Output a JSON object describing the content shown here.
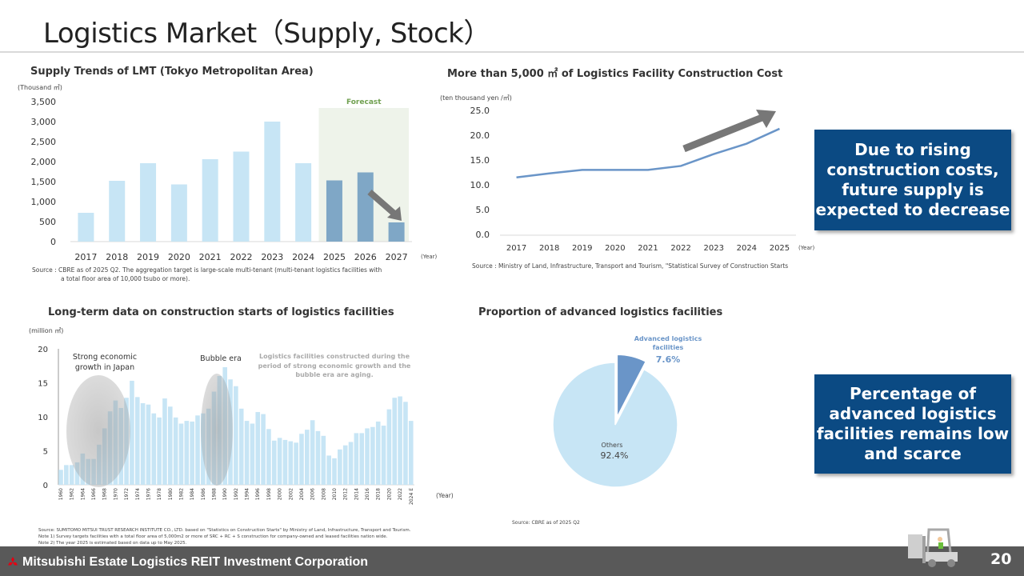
{
  "page": {
    "title": "Logistics Market（Supply, Stock）",
    "footer_company": "Mitsubishi Estate Logistics REIT Investment Corporation",
    "page_number": "20",
    "callout_top": "Due to rising construction costs, future supply is expected to decrease",
    "callout_bottom": "Percentage of advanced logistics facilities remains low and scarce"
  },
  "colors": {
    "bar_light": "#c7e5f5",
    "bar_dark": "#7fa7c6",
    "line": "#6a95c8",
    "callout": "#0b4a83",
    "forecast_bg": "#eef3ea",
    "forecast_text": "#70a050",
    "arrow": "#777777"
  },
  "chart_data": [
    {
      "type": "bar",
      "title": "Supply Trends of LMT (Tokyo Metropolitan Area)",
      "ylabel": "(Thousand ㎡)",
      "xlabel": "(Year)",
      "ylim": [
        0,
        3500
      ],
      "yticks": [
        "0",
        "500",
        "1,000",
        "1,500",
        "2,000",
        "2,500",
        "3,000",
        "3,500"
      ],
      "categories": [
        "2017",
        "2018",
        "2019",
        "2020",
        "2021",
        "2022",
        "2023",
        "2024",
        "2025",
        "2026",
        "2027"
      ],
      "values": [
        720,
        1520,
        1960,
        1430,
        2060,
        2250,
        3000,
        1960,
        1530,
        1730,
        480
      ],
      "forecast_from": "2025",
      "forecast_label": "Forecast",
      "source": "Source : CBRE  as of 2025 Q2. The aggregation target is large-scale multi-tenant (multi-tenant logistics facilities with",
      "source2": "a total floor area of 10,000 tsubo or more)."
    },
    {
      "type": "line",
      "title": "More than 5,000 ㎡ of Logistics Facility Construction Cost",
      "ylabel": "(ten thousand yen /㎡)",
      "xlabel": "(Year)",
      "ylim": [
        0,
        25
      ],
      "yticks": [
        "0.0",
        "5.0",
        "10.0",
        "15.0",
        "20.0",
        "25.0"
      ],
      "categories": [
        "2017",
        "2018",
        "2019",
        "2020",
        "2021",
        "2022",
        "2023",
        "2024",
        "2025"
      ],
      "values": [
        11.5,
        12.3,
        13.0,
        13.0,
        13.0,
        13.8,
        16.2,
        18.3,
        21.3
      ],
      "source": "Source :  Ministry of Land, Infrastructure, Transport and Tourism, \"Statistical Survey of Construction Starts"
    },
    {
      "type": "bar",
      "title": "Long-term data on construction starts of logistics facilities",
      "ylabel": "(million ㎡)",
      "xlabel": "(Year)",
      "ylim": [
        0,
        20
      ],
      "yticks": [
        "0",
        "5",
        "10",
        "15",
        "20"
      ],
      "start_year": 1960,
      "tick_labels": [
        "1960",
        "1962",
        "1964",
        "1966",
        "1968",
        "1970",
        "1972",
        "1974",
        "1976",
        "1978",
        "1980",
        "1982",
        "1984",
        "1986",
        "1988",
        "1990",
        "1992",
        "1994",
        "1996",
        "1998",
        "2000",
        "2002",
        "2004",
        "2006",
        "2008",
        "2010",
        "2012",
        "2014",
        "2016",
        "2018",
        "2020",
        "2022",
        "2024 E"
      ],
      "values": [
        2.2,
        2.9,
        2.9,
        3.3,
        4.6,
        3.8,
        3.8,
        5.9,
        8.3,
        10.8,
        12.4,
        11.3,
        12.8,
        15.3,
        12.9,
        12.0,
        11.8,
        10.5,
        9.9,
        12.7,
        11.5,
        9.9,
        9.0,
        9.4,
        9.3,
        10.2,
        10.5,
        11.2,
        13.7,
        16.0,
        17.3,
        15.5,
        14.5,
        11.2,
        9.4,
        9.0,
        10.7,
        10.4,
        8.2,
        6.5,
        6.9,
        6.6,
        6.4,
        6.2,
        7.5,
        8.1,
        9.5,
        7.9,
        7.2,
        4.3,
        3.9,
        5.2,
        5.8,
        6.3,
        7.6,
        7.6,
        8.3,
        8.5,
        9.3,
        8.7,
        11.1,
        12.8,
        13.0,
        12.2,
        9.4
      ],
      "annotations": {
        "strong_growth": "Strong economic growth in Japan",
        "bubble": "Bubble era",
        "aging": "Logistics facilities constructed during the period of strong economic growth and the bubble era are aging."
      },
      "source": "Source: SUMITOMO MITSUI TRUST RESEARCH INSTITUTE CO., LTD. based on \"Statistics on Construction Starts\" by Ministry of Land, Infrastructure, Transport and Tourism.",
      "note1": "Note 1) Survey targets facilities with a total floor area of 5,000m2 or more of SRC + RC + S construction for company-owned and leased facilities nation wide.",
      "note2": "Note 2) The year 2025 is estimated based on data up to May 2025."
    },
    {
      "type": "pie",
      "title": "Proportion of advanced logistics facilities",
      "slices": [
        {
          "label": "Advanced logistics facilities",
          "value": 7.6,
          "display": "7.6%"
        },
        {
          "label": "Others",
          "value": 92.4,
          "display": "92.4%"
        }
      ],
      "source": "Source: CBRE  as of 2025 Q2"
    }
  ]
}
